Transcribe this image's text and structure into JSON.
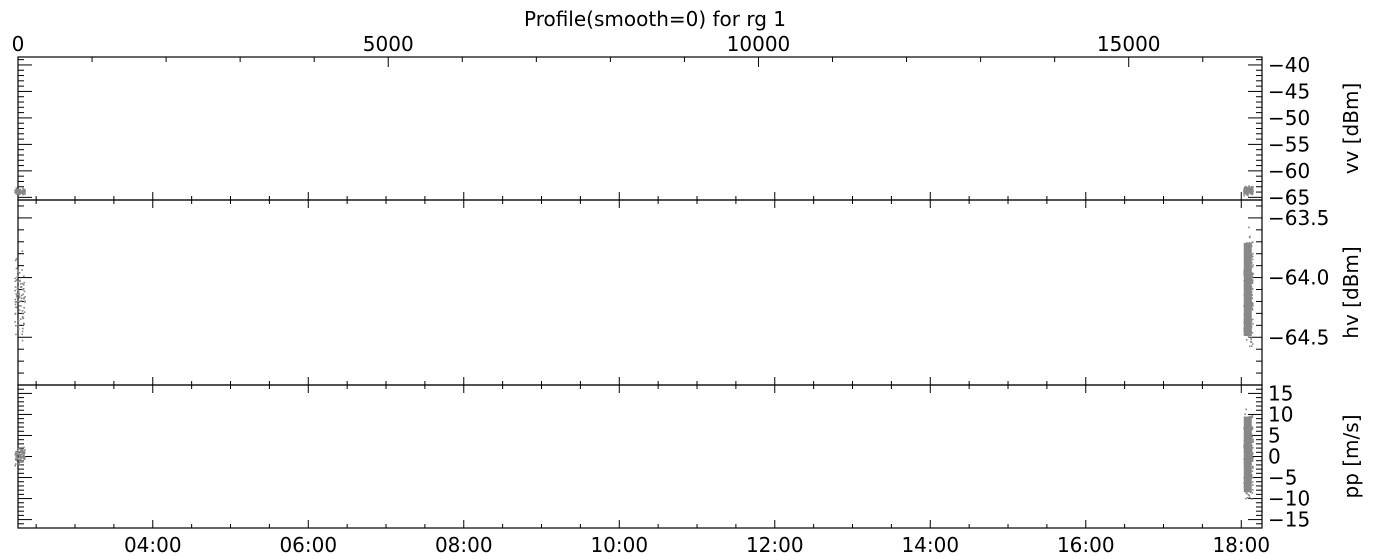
{
  "chart_data": {
    "type": "scatter",
    "title": "Profile(smooth=0) for rg 1",
    "top_axis": {
      "range": [
        0,
        16800
      ],
      "ticks": [
        0,
        5000,
        10000,
        15000
      ],
      "tick_labels": [
        "0",
        "5000",
        "10000",
        "15000"
      ]
    },
    "x_axis": {
      "range": [
        "02:16",
        "18:16"
      ],
      "ticks": [
        "04:00",
        "06:00",
        "08:00",
        "10:00",
        "12:00",
        "14:00",
        "16:00",
        "18:00"
      ],
      "tick_labels": [
        "04:00",
        "06:00",
        "08:00",
        "10:00",
        "12:00",
        "14:00",
        "16:00",
        "18:00"
      ]
    },
    "panels": [
      {
        "ylabel": "vv [dBm]",
        "ylim": [
          -65.5,
          -38.5
        ],
        "yticks": [
          -40,
          -45,
          -50,
          -55,
          -60,
          -65
        ],
        "ytick_labels": [
          "−40",
          "−45",
          "−50",
          "−55",
          "−60",
          "−65"
        ],
        "clusters": [
          {
            "time": "02:17",
            "y_min": -64.6,
            "y_max": -62.9
          },
          {
            "time": "18:05",
            "y_min": -64.6,
            "y_max": -62.6
          }
        ]
      },
      {
        "ylabel": "hv [dBm]",
        "ylim": [
          -64.9,
          -63.35
        ],
        "yticks": [
          -63.5,
          -64.0,
          -64.5
        ],
        "ytick_labels": [
          "−63.5",
          "−64.0",
          "−64.5"
        ],
        "clusters": [
          {
            "time": "02:17",
            "y_min": -64.62,
            "y_max": -63.7
          },
          {
            "time": "18:05",
            "y_min": -64.75,
            "y_max": -63.45
          }
        ]
      },
      {
        "ylabel": "pp [m/s]",
        "ylim": [
          -17,
          17
        ],
        "yticks": [
          15,
          10,
          5,
          0,
          -5,
          -10,
          -15
        ],
        "ytick_labels": [
          "15",
          "10",
          "5",
          "0",
          "−5",
          "−10",
          "−15"
        ],
        "clusters": [
          {
            "time": "02:17",
            "y_min": -2.5,
            "y_max": 3.5
          },
          {
            "time": "18:05",
            "y_min": -14.5,
            "y_max": 15.5
          }
        ]
      }
    ],
    "marker_color": "#888888",
    "grid": false,
    "legend": "none"
  }
}
